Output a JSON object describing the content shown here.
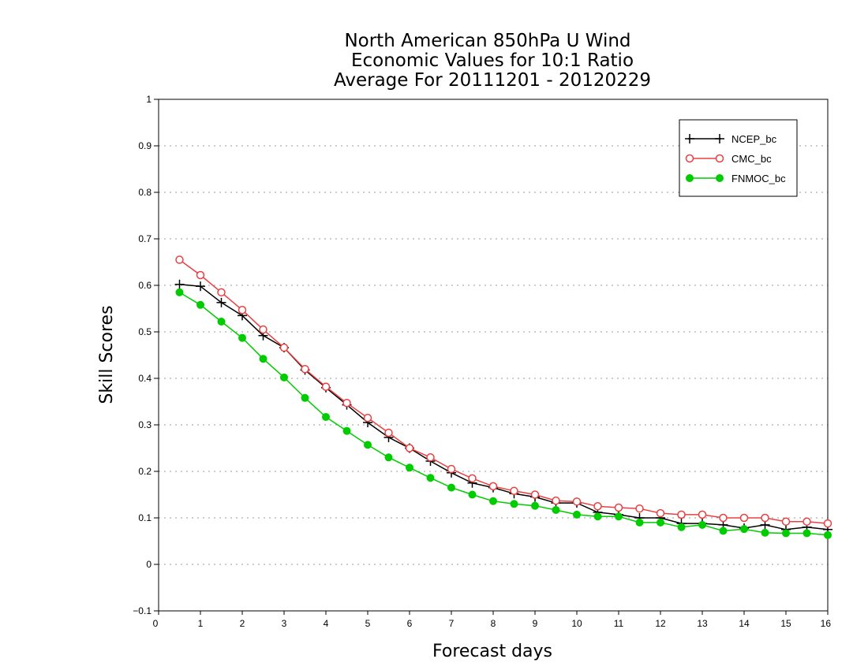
{
  "chart_data": {
    "type": "line",
    "title": [
      "North American 850hPa U Wind",
      "Economic Values for 10:1 Ratio",
      "Average For 20111201 - 20120229"
    ],
    "xlabel": "Forecast days",
    "ylabel": "Skill Scores",
    "xlim": [
      0,
      16
    ],
    "ylim": [
      -0.1,
      1
    ],
    "xticks": [
      0,
      1,
      2,
      3,
      4,
      5,
      6,
      7,
      8,
      9,
      10,
      11,
      12,
      13,
      14,
      15,
      16
    ],
    "yticks": [
      -0.1,
      0,
      0.1,
      0.2,
      0.3,
      0.4,
      0.5,
      0.6,
      0.7,
      0.8,
      0.9,
      1
    ],
    "ytick_labels": [
      "−0.1",
      "0",
      "0.1",
      "0.2",
      "0.3",
      "0.4",
      "0.5",
      "0.6",
      "0.7",
      "0.8",
      "0.9",
      "1"
    ],
    "grid": "horizontal-dotted",
    "legend_position": "top-right",
    "x": [
      0.5,
      1,
      1.5,
      2,
      2.5,
      3,
      3.5,
      4,
      4.5,
      5,
      5.5,
      6,
      6.5,
      7,
      7.5,
      8,
      8.5,
      9,
      9.5,
      10,
      10.5,
      11,
      11.5,
      12,
      12.5,
      13,
      13.5,
      14,
      14.5,
      15,
      15.5,
      16
    ],
    "series": [
      {
        "name": "NCEP_bc",
        "color": "#000000",
        "marker": "plus",
        "values": [
          0.602,
          0.598,
          0.563,
          0.535,
          0.492,
          0.466,
          0.418,
          0.38,
          0.343,
          0.305,
          0.273,
          0.25,
          0.222,
          0.197,
          0.175,
          0.165,
          0.152,
          0.145,
          0.132,
          0.132,
          0.112,
          0.107,
          0.1,
          0.1,
          0.088,
          0.088,
          0.085,
          0.078,
          0.085,
          0.075,
          0.08,
          0.075
        ]
      },
      {
        "name": "CMC_bc",
        "color": "#e84040",
        "marker": "open-circle",
        "values": [
          0.655,
          0.622,
          0.585,
          0.547,
          0.505,
          0.466,
          0.42,
          0.382,
          0.347,
          0.315,
          0.283,
          0.25,
          0.23,
          0.205,
          0.185,
          0.168,
          0.158,
          0.15,
          0.137,
          0.135,
          0.125,
          0.122,
          0.12,
          0.11,
          0.107,
          0.107,
          0.1,
          0.1,
          0.1,
          0.092,
          0.092,
          0.088
        ]
      },
      {
        "name": "FNMOC_bc",
        "color": "#00cc00",
        "marker": "filled-circle",
        "values": [
          0.585,
          0.558,
          0.522,
          0.487,
          0.442,
          0.402,
          0.358,
          0.317,
          0.287,
          0.257,
          0.23,
          0.208,
          0.186,
          0.165,
          0.15,
          0.136,
          0.13,
          0.126,
          0.117,
          0.107,
          0.103,
          0.103,
          0.09,
          0.09,
          0.08,
          0.085,
          0.072,
          0.076,
          0.068,
          0.067,
          0.067,
          0.063
        ]
      }
    ]
  }
}
